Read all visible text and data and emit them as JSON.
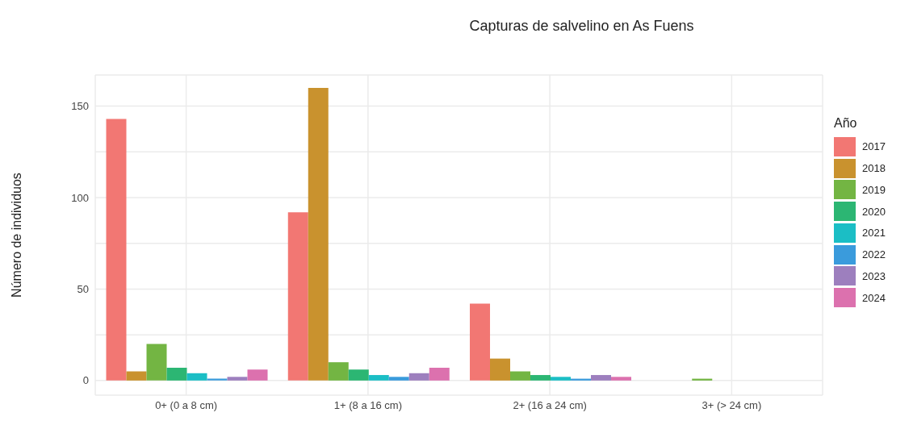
{
  "chart_data": {
    "type": "bar",
    "title": "Capturas de salvelino en As Fuens",
    "ylabel": "Número de individuos",
    "legend_title": "Año",
    "categories": [
      "0+ (0 a 8 cm)",
      "1+ (8 a 16 cm)",
      "2+ (16 a 24 cm)",
      "3+ (> 24 cm)"
    ],
    "series": [
      {
        "name": "2017",
        "color": "#f27773",
        "values": [
          143,
          92,
          42,
          0
        ]
      },
      {
        "name": "2018",
        "color": "#c9922e",
        "values": [
          5,
          160,
          12,
          0
        ]
      },
      {
        "name": "2019",
        "color": "#73b543",
        "values": [
          20,
          10,
          5,
          1
        ]
      },
      {
        "name": "2020",
        "color": "#2cb673",
        "values": [
          7,
          6,
          3,
          0
        ]
      },
      {
        "name": "2021",
        "color": "#1bbec5",
        "values": [
          4,
          3,
          2,
          0
        ]
      },
      {
        "name": "2022",
        "color": "#3a9bdc",
        "values": [
          1,
          2,
          1,
          0
        ]
      },
      {
        "name": "2023",
        "color": "#9d7fbe",
        "values": [
          2,
          4,
          3,
          0
        ]
      },
      {
        "name": "2024",
        "color": "#dc71ae",
        "values": [
          6,
          7,
          2,
          0
        ]
      }
    ],
    "ylim": [
      -8,
      167
    ],
    "yticks": [
      0,
      {
        "value": 25,
        "label": null
      },
      50,
      {
        "value": 75,
        "label": null
      },
      100,
      {
        "value": 125,
        "label": null
      },
      150
    ],
    "grid": true,
    "legend": "right"
  }
}
